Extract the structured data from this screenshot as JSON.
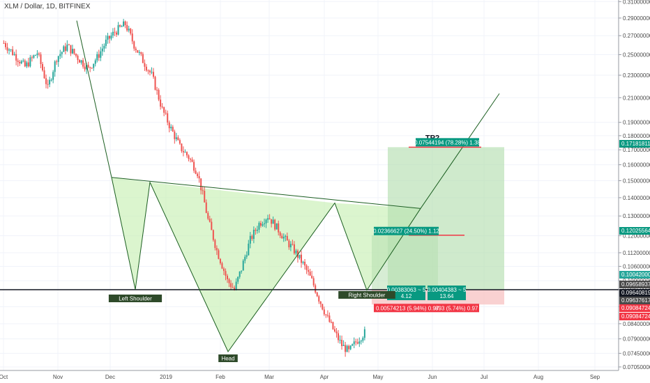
{
  "chart_data": {
    "type": "candlestick",
    "title": "XLM / Dollar, 1D, BITFINEX",
    "x_ticks": [
      "Oct",
      "Nov",
      "Dec",
      "2019",
      "Feb",
      "Mar",
      "Apr",
      "May",
      "Jun",
      "Jul",
      "Aug",
      "Sep"
    ],
    "y_ticks": [
      "0.07050000",
      "0.07450000",
      "0.07900000",
      "0.08400000",
      "0.09000000",
      "0.09650000",
      "0.10000000",
      "0.10600000",
      "0.11200000",
      "0.12000000",
      "0.13000000",
      "0.14000000",
      "0.15000000",
      "0.16000000",
      "0.17000000",
      "0.18000000",
      "0.19000000",
      "0.21000000",
      "0.23000000",
      "0.25000000",
      "0.27000000",
      "0.29000000",
      "0.31000000"
    ],
    "y_scale": "log",
    "y_range": [
      0.0695,
      0.312
    ],
    "price_badges": [
      {
        "value": "0.17181811",
        "color": "#089981"
      },
      {
        "value": "0.12025564",
        "color": "#089981"
      },
      {
        "value": "0.10042000",
        "color": "#26a69a"
      },
      {
        "value": "0.09658937",
        "color": "#4a4a4a"
      },
      {
        "value": "0.09640819",
        "color": "#131722"
      },
      {
        "value": "0.09637617",
        "color": "#4a4a4a"
      },
      {
        "value": "0.09084724",
        "color": "#f23645"
      },
      {
        "value": "0.09084724",
        "color": "#f23645"
      }
    ],
    "pattern_labels": [
      "Left Shoulder",
      "Head",
      "Right Shoulder"
    ],
    "target_label": "TP2",
    "positions": [
      {
        "profit_label": "0.07544194 (78.28%) 1.38",
        "stop_label": "0.00574213 (5.94%) 0.97",
        "entry": 0.09641,
        "target": 0.17182,
        "stop": 0.0908
      },
      {
        "profit_label": "0.02366627 (24.50%) 1.12",
        "entry": 0.09641,
        "target": 0.12026
      },
      {
        "info_label": "0.00383063 ~ 5",
        "info_value": "4.12"
      },
      {
        "info_label": "0.00404383 ~ 5",
        "info_value": "13.64",
        "stop_label": "893 (5.74%) 0.97"
      }
    ],
    "support_line": 0.09641,
    "colors": {
      "up": "#26a69a",
      "down": "#ef5350",
      "pattern_fill": "#c8f0b4",
      "profit_zone": "#b6dfb1",
      "loss_zone": "#f7c5c5",
      "label_bg": "#089981",
      "loss_bg": "#f23645"
    }
  }
}
